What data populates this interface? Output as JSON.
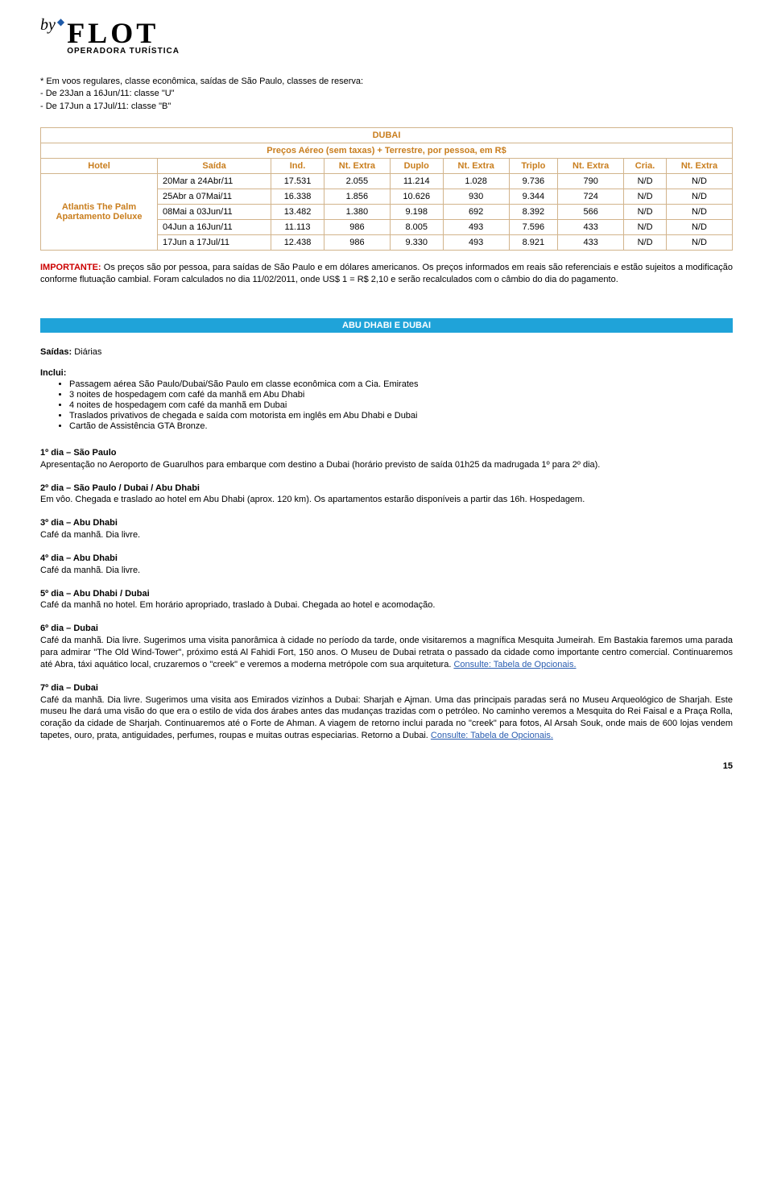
{
  "logo": {
    "by": "by",
    "brand": "FLOT",
    "sub": "OPERADORA TURÍSTICA"
  },
  "voos_note": {
    "line1": "* Em voos regulares, classe econômica, saídas de São Paulo, classes de reserva:",
    "line2": "- De 23Jan a 16Jun/11: classe \"U\"",
    "line3": "- De 17Jun a 17Jul/11: classe \"B\""
  },
  "price_table": {
    "title": "DUBAI",
    "subtitle": "Preços Aéreo (sem taxas) + Terrestre, por pessoa, em R$",
    "headers": [
      "Hotel",
      "Saída",
      "Ind.",
      "Nt. Extra",
      "Duplo",
      "Nt. Extra",
      "Triplo",
      "Nt. Extra",
      "Cria.",
      "Nt. Extra"
    ],
    "hotel_label": "Atlantis The Palm Apartamento Deluxe",
    "rows": [
      [
        "20Mar a 24Abr/11",
        "17.531",
        "2.055",
        "11.214",
        "1.028",
        "9.736",
        "790",
        "N/D",
        "N/D"
      ],
      [
        "25Abr a 07Mai/11",
        "16.338",
        "1.856",
        "10.626",
        "930",
        "9.344",
        "724",
        "N/D",
        "N/D"
      ],
      [
        "08Mai a 03Jun/11",
        "13.482",
        "1.380",
        "9.198",
        "692",
        "8.392",
        "566",
        "N/D",
        "N/D"
      ],
      [
        "04Jun a 16Jun/11",
        "11.113",
        "986",
        "8.005",
        "493",
        "7.596",
        "433",
        "N/D",
        "N/D"
      ],
      [
        "17Jun a 17Jul/11",
        "12.438",
        "986",
        "9.330",
        "493",
        "8.921",
        "433",
        "N/D",
        "N/D"
      ]
    ]
  },
  "importante": {
    "label": "IMPORTANTE:",
    "text": " Os preços são por pessoa, para saídas de São Paulo e em dólares americanos. Os preços informados em reais são referenciais e estão sujeitos a modificação conforme flutuação cambial. Foram calculados no dia 11/02/2011, onde US$ 1 = R$ 2,10 e serão recalculados com o câmbio do dia do pagamento."
  },
  "section": {
    "banner": "ABU DHABI E DUBAI",
    "saidas_label": "Saídas:",
    "saidas_value": " Diárias",
    "inclui_label": "Inclui:",
    "inclui_items": [
      "Passagem aérea São Paulo/Dubai/São Paulo em classe econômica com a Cia. Emirates",
      "3 noites de hospedagem com café da manhã em Abu Dhabi",
      "4 noites de hospedagem com café da manhã em Dubai",
      "Traslados privativos de chegada e saída com motorista em inglês em Abu Dhabi e Dubai",
      "Cartão de Assistência GTA Bronze."
    ]
  },
  "days": [
    {
      "title": "1º dia – São Paulo",
      "body": "Apresentação no Aeroporto de Guarulhos para embarque com destino a Dubai (horário previsto de saída 01h25 da madrugada 1º para 2º dia).",
      "link": null
    },
    {
      "title": "2º dia – São Paulo / Dubai / Abu Dhabi",
      "body": "Em vôo. Chegada e traslado ao hotel em Abu Dhabi (aprox. 120 km). Os apartamentos estarão disponíveis a partir das 16h. Hospedagem.",
      "link": null
    },
    {
      "title": "3º dia – Abu Dhabi",
      "body": "Café da manhã. Dia livre.",
      "link": null
    },
    {
      "title": "4º dia – Abu Dhabi",
      "body": "Café da manhã. Dia livre.",
      "link": null
    },
    {
      "title": "5º dia – Abu Dhabi / Dubai",
      "body": "Café da manhã no hotel. Em horário apropriado, traslado à Dubai. Chegada ao hotel e acomodação.",
      "link": null
    },
    {
      "title": "6º dia – Dubai",
      "body": "Café da manhã. Dia livre. Sugerimos uma visita panorâmica à cidade no período da tarde, onde visitaremos a magnífica Mesquita Jumeirah. Em Bastakia faremos uma parada para admirar \"The Old Wind-Tower\", próximo está Al Fahidi Fort, 150 anos. O Museu de Dubai retrata o passado da cidade como importante centro comercial. Continuaremos até Abra, táxi aquático local, cruzaremos o \"creek\" e veremos a moderna metrópole com sua arquitetura. ",
      "link": "Consulte: Tabela de Opcionais."
    },
    {
      "title": "7º dia – Dubai",
      "body": "Café da manhã. Dia livre. Sugerimos uma visita aos Emirados vizinhos a Dubai: Sharjah e Ajman. Uma das principais paradas será no Museu Arqueológico de Sharjah. Este museu lhe dará uma visão do que era o estilo de vida dos árabes antes das mudanças trazidas com o petróleo. No caminho veremos a Mesquita do Rei Faisal e a Praça Rolla, coração da cidade de Sharjah. Continuaremos até o Forte de Ahman. A viagem de retorno inclui parada no \"creek\" para fotos, Al Arsah Souk, onde mais de 600 lojas vendem tapetes, ouro, prata, antiguidades, perfumes, roupas e muitas outras especiarias. Retorno a Dubai. ",
      "link": "Consulte: Tabela de Opcionais."
    }
  ],
  "page_num": "15"
}
